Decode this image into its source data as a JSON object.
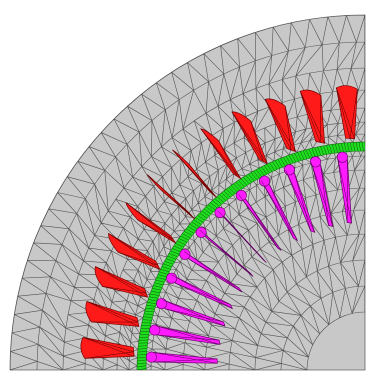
{
  "diagram": {
    "kind": "finite-element mesh, quarter cross-section of an electrical machine",
    "colors": {
      "background": "#ffffff",
      "iron": "#c8c8c8",
      "mesh_line": "#2a2a2a",
      "stator_slot": "#ff1a1a",
      "rotor_bar": "#ff1aff",
      "air_gap": "#1fdc1f"
    },
    "stator_slots": {
      "count": 12
    },
    "rotor_bars": {
      "count": 12
    }
  }
}
